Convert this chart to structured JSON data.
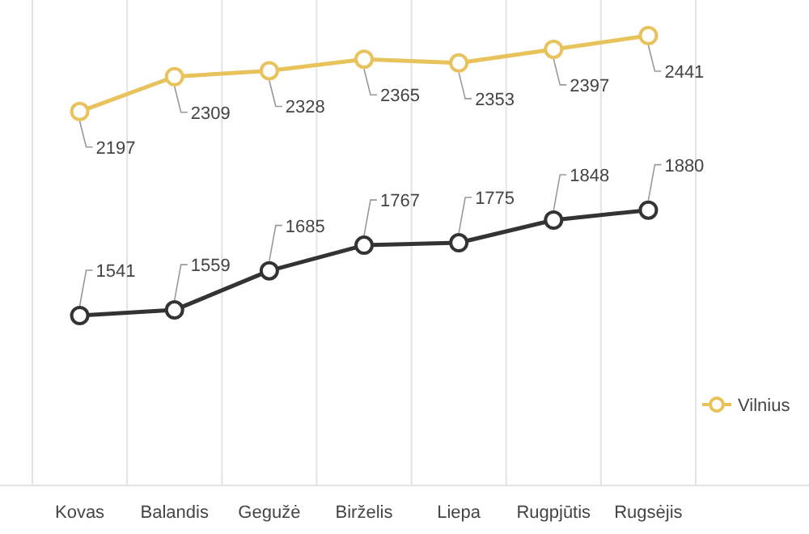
{
  "chart_data": {
    "type": "line",
    "categories": [
      "Kovas",
      "Balandis",
      "Gegužė",
      "Birželis",
      "Liepa",
      "Rugpjūtis",
      "Rugsėjis"
    ],
    "series": [
      {
        "name": "Vilnius",
        "color": "#e8c25a",
        "values": [
          2197,
          2309,
          2328,
          2365,
          2353,
          2397,
          2441
        ]
      },
      {
        "color": "#333333",
        "values": [
          1541,
          1559,
          1685,
          1767,
          1775,
          1848,
          1880
        ]
      }
    ],
    "tick_labels": "x",
    "grid": "x",
    "legend": "right",
    "marker": "circle",
    "line_style": "solid",
    "data_labels": true
  }
}
